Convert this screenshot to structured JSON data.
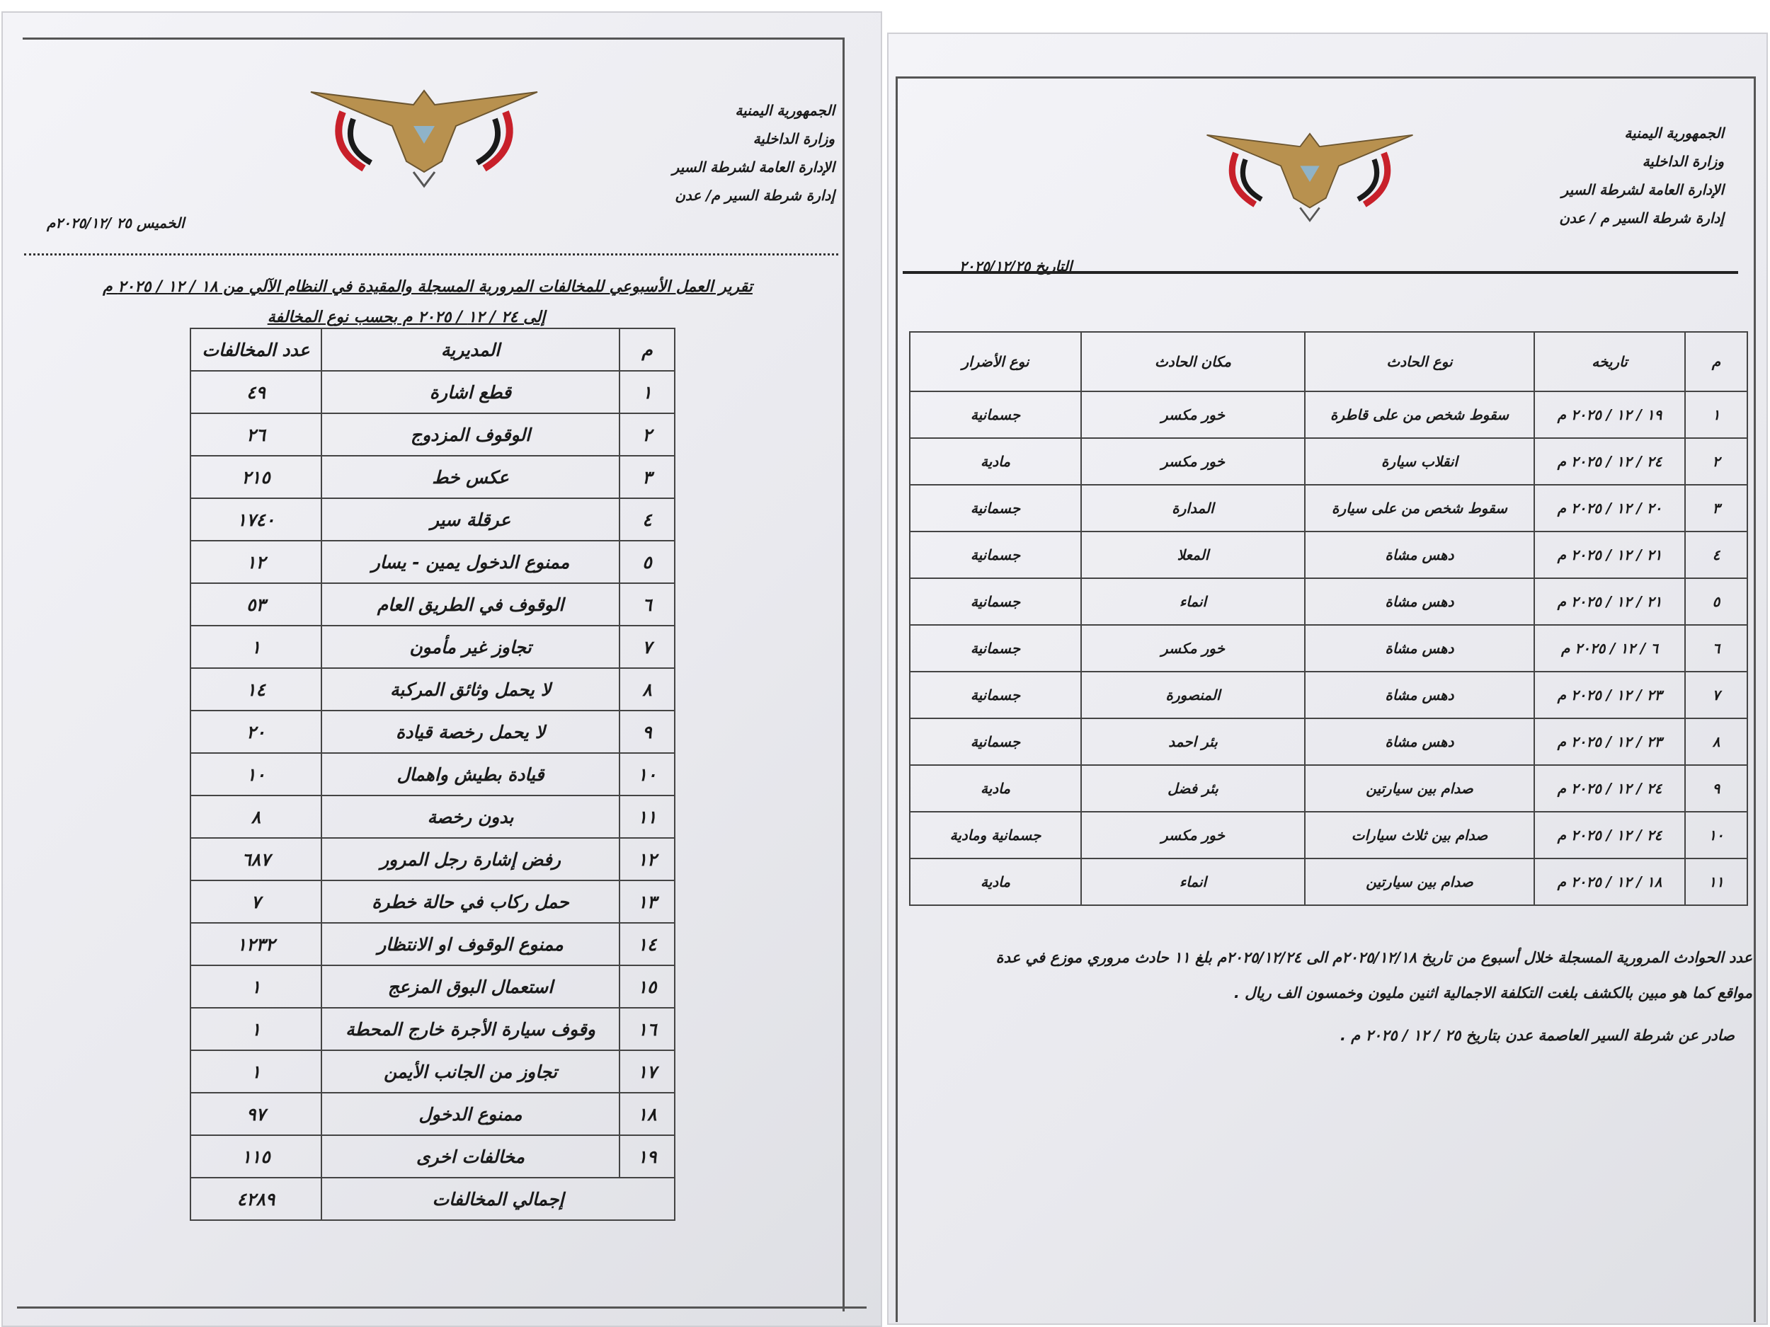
{
  "left_doc": {
    "header_lines": [
      "الجمهورية اليمنية",
      "وزارة الداخلية",
      "الإدارة العامة لشرطة السير",
      "إدارة شرطة السير م/ عدن"
    ],
    "date": "الخميس ٢٥ /٢٠٢٥/١٢م",
    "title_line1": "تقرير العمل الأسبوعي للمخالفات المرورية المسجلة والمقيدة في النظام الآلي من ١٨ / ١٢ / ٢٠٢٥ م",
    "title_line2": "إلى ٢٤ / ١٢ / ٢٠٢٥ م بحسب نوع المخالفة",
    "table": {
      "headers": {
        "num": "م",
        "type": "المديرية",
        "count": "عدد المخالفات"
      },
      "rows": [
        {
          "num": "١",
          "type": "قطع اشارة",
          "count": "٤٩"
        },
        {
          "num": "٢",
          "type": "الوقوف المزدوج",
          "count": "٢٦"
        },
        {
          "num": "٣",
          "type": "عكس خط",
          "count": "٢١٥"
        },
        {
          "num": "٤",
          "type": "عرقلة سير",
          "count": "١٧٤٠"
        },
        {
          "num": "٥",
          "type": "ممنوع الدخول يمين - يسار",
          "count": "١٢"
        },
        {
          "num": "٦",
          "type": "الوقوف في الطريق العام",
          "count": "٥٣"
        },
        {
          "num": "٧",
          "type": "تجاوز غير مأمون",
          "count": "١"
        },
        {
          "num": "٨",
          "type": "لا يحمل وثائق المركبة",
          "count": "١٤"
        },
        {
          "num": "٩",
          "type": "لا يحمل رخصة قيادة",
          "count": "٢٠"
        },
        {
          "num": "١٠",
          "type": "قيادة بطيش واهمال",
          "count": "١٠"
        },
        {
          "num": "١١",
          "type": "بدون رخصة",
          "count": "٨"
        },
        {
          "num": "١٢",
          "type": "رفض إشارة رجل المرور",
          "count": "٦٨٧"
        },
        {
          "num": "١٣",
          "type": "حمل ركاب في حالة خطرة",
          "count": "٧"
        },
        {
          "num": "١٤",
          "type": "ممنوع الوقوف او الانتظار",
          "count": "١٢٣٢"
        },
        {
          "num": "١٥",
          "type": "استعمال البوق المزعج",
          "count": "١"
        },
        {
          "num": "١٦",
          "type": "وقوف سيارة الأجرة خارج المحطة",
          "count": "١"
        },
        {
          "num": "١٧",
          "type": "تجاوز من الجانب الأيمن",
          "count": "١"
        },
        {
          "num": "١٨",
          "type": "ممنوع الدخول",
          "count": "٩٧"
        },
        {
          "num": "١٩",
          "type": "مخالفات اخرى",
          "count": "١١٥"
        }
      ],
      "total_label": "إجمالي المخالفات",
      "total_count": "٤٢٨٩"
    }
  },
  "right_doc": {
    "header_lines": [
      "الجمهورية اليمنية",
      "وزارة الداخلية",
      "الإدارة العامة لشرطة السير",
      "إدارة شرطة السير م / عدن"
    ],
    "date": "التاريخ ٢٠٢٥/١٢/٢٥",
    "table": {
      "headers": {
        "num": "م",
        "date": "تاريخه",
        "type": "نوع الحادث",
        "place": "مكان الحادث",
        "damage": "نوع الأضرار"
      },
      "rows": [
        {
          "num": "١",
          "date": "١٩ / ١٢ / ٢٠٢٥ م",
          "type": "سقوط شخص من على قاطرة",
          "place": "خور مكسر",
          "damage": "جسمانية"
        },
        {
          "num": "٢",
          "date": "٢٤ / ١٢ / ٢٠٢٥ م",
          "type": "انقلاب سيارة",
          "place": "خور مكسر",
          "damage": "مادية"
        },
        {
          "num": "٣",
          "date": "٢٠ / ١٢ / ٢٠٢٥ م",
          "type": "سقوط شخص من على سيارة",
          "place": "المدارة",
          "damage": "جسمانية"
        },
        {
          "num": "٤",
          "date": "٢١ / ١٢ / ٢٠٢٥ م",
          "type": "دهس مشاة",
          "place": "المعلا",
          "damage": "جسمانية"
        },
        {
          "num": "٥",
          "date": "٢١ / ١٢ / ٢٠٢٥ م",
          "type": "دهس مشاة",
          "place": "انماء",
          "damage": "جسمانية"
        },
        {
          "num": "٦",
          "date": "٦ / ١٢ / ٢٠٢٥ م",
          "type": "دهس مشاة",
          "place": "خور مكسر",
          "damage": "جسمانية"
        },
        {
          "num": "٧",
          "date": "٢٣ / ١٢ / ٢٠٢٥ م",
          "type": "دهس مشاة",
          "place": "المنصورة",
          "damage": "جسمانية"
        },
        {
          "num": "٨",
          "date": "٢٣ / ١٢ / ٢٠٢٥ م",
          "type": "دهس مشاة",
          "place": "بئر احمد",
          "damage": "جسمانية"
        },
        {
          "num": "٩",
          "date": "٢٤ / ١٢ / ٢٠٢٥ م",
          "type": "صدام بين سيارتين",
          "place": "بئر فضل",
          "damage": "مادية"
        },
        {
          "num": "١٠",
          "date": "٢٤ / ١٢ / ٢٠٢٥ م",
          "type": "صدام بين ثلاث سيارات",
          "place": "خور مكسر",
          "damage": "جسمانية ومادية"
        },
        {
          "num": "١١",
          "date": "١٨ / ١٢ / ٢٠٢٥ م",
          "type": "صدام بين سيارتين",
          "place": "انماء",
          "damage": "مادية"
        }
      ]
    },
    "summary_line1": "عدد الحوادث المرورية المسجلة خلال أسبوع من تاريخ ٢٠٢٥/١٢/١٨م الى ٢٠٢٥/١٢/٢٤م بلغ ١١ حادث مروري موزع في عدة",
    "summary_line2": "مواقع كما هو مبين بالكشف بلغت التكلفة الاجمالية اثنين مليون وخمسون الف ريال .",
    "issued": "صادر عن شرطة السير العاصمة عدن بتاريخ ٢٥ / ١٢ / ٢٠٢٥ م ."
  },
  "colors": {
    "emblem_gold": "#b8914f",
    "flag_red": "#c8202a",
    "flag_black": "#1a1a1a",
    "ink": "#1a1a1a"
  }
}
